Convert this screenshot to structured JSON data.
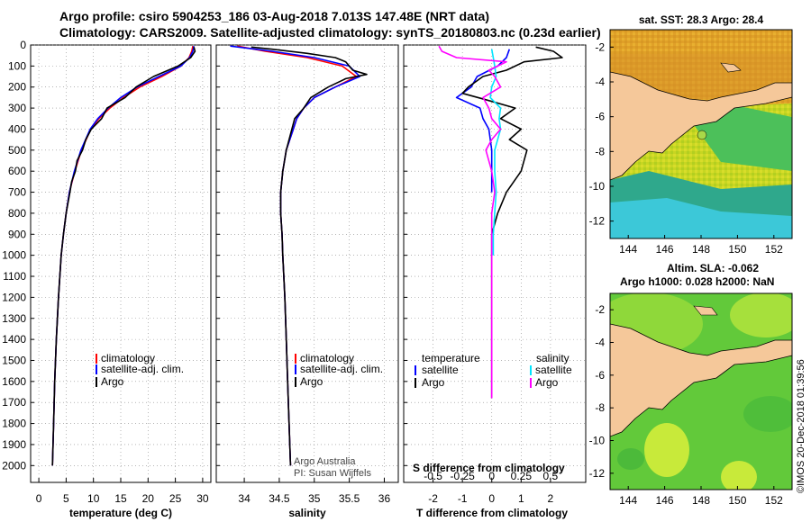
{
  "titles": {
    "line1": "Argo profile: csiro 5904253_186 03-Aug-2018 7.013S 147.48E (NRT data)",
    "line2": "Climatology: CARS2009. Satellite-adjusted climatology: synTS_20180803.nc (0.23d earlier)"
  },
  "depth_axis": {
    "ticks": [
      0,
      100,
      200,
      300,
      400,
      500,
      600,
      700,
      800,
      900,
      1000,
      1100,
      1200,
      1300,
      1400,
      1500,
      1600,
      1700,
      1800,
      1900,
      2000
    ]
  },
  "chart_data": [
    {
      "type": "line",
      "name": "temperature",
      "xlabel": "temperature (deg C)",
      "xlim": [
        -1.5,
        31.5
      ],
      "xticks": [
        0,
        5,
        10,
        15,
        20,
        25,
        30
      ],
      "ylim": [
        0,
        2080
      ],
      "legend": [
        "climatology",
        "satellite-adj. clim.",
        "Argo"
      ],
      "series": [
        {
          "name": "climatology",
          "color": "#ff0000",
          "depth": [
            5,
            30,
            60,
            100,
            150,
            200,
            250,
            300,
            350,
            400,
            500,
            600,
            700,
            800,
            900,
            1000,
            1200,
            1400,
            1600,
            1800,
            2000
          ],
          "values": [
            28.2,
            28.0,
            27.5,
            26.0,
            22.5,
            18.5,
            15.5,
            13.0,
            11.0,
            9.5,
            7.8,
            6.6,
            5.6,
            5.0,
            4.5,
            4.1,
            3.6,
            3.2,
            2.9,
            2.7,
            2.5
          ]
        },
        {
          "name": "satellite-adj. clim.",
          "color": "#0000ff",
          "depth": [
            5,
            30,
            60,
            100,
            150,
            200,
            250,
            300,
            350,
            400,
            500,
            600,
            700,
            800,
            900,
            1000,
            1200,
            1400,
            1600,
            1800,
            2000
          ],
          "values": [
            28.4,
            28.2,
            27.6,
            26.0,
            22.0,
            18.0,
            15.0,
            12.7,
            10.8,
            9.4,
            7.7,
            6.5,
            5.6,
            5.0,
            4.5,
            4.1,
            3.6,
            3.2,
            2.9,
            2.7,
            2.5
          ]
        },
        {
          "name": "Argo",
          "color": "#000000",
          "depth": [
            10,
            30,
            60,
            100,
            150,
            200,
            250,
            300,
            350,
            400,
            450,
            500,
            550,
            600,
            650,
            700,
            800,
            900,
            1000,
            1200,
            1400,
            1600,
            1800,
            2000
          ],
          "values": [
            28.4,
            28.6,
            27.8,
            25.5,
            21.0,
            17.8,
            15.8,
            12.5,
            11.5,
            9.6,
            8.6,
            8.0,
            7.0,
            6.7,
            6.0,
            5.7,
            5.0,
            4.5,
            4.1,
            3.6,
            3.2,
            2.9,
            2.7,
            2.5
          ]
        }
      ]
    },
    {
      "type": "line",
      "name": "salinity",
      "xlabel": "salinity",
      "xlim": [
        33.6,
        36.2
      ],
      "xticks": [
        34,
        34.5,
        35,
        35.5,
        36
      ],
      "ylim": [
        0,
        2080
      ],
      "legend": [
        "climatology",
        "satellite-adj. clim.",
        "Argo"
      ],
      "series": [
        {
          "name": "climatology",
          "color": "#ff0000",
          "depth": [
            5,
            30,
            60,
            100,
            150,
            200,
            250,
            300,
            350,
            400,
            500,
            600,
            700,
            800,
            900,
            1000,
            1200,
            1400,
            1600,
            1800,
            2000
          ],
          "values": [
            33.9,
            34.3,
            34.9,
            35.4,
            35.6,
            35.3,
            35.0,
            34.85,
            34.75,
            34.7,
            34.6,
            34.55,
            34.52,
            34.52,
            34.54,
            34.55,
            34.58,
            34.6,
            34.62,
            34.64,
            34.66
          ]
        },
        {
          "name": "satellite-adj. clim.",
          "color": "#0000ff",
          "depth": [
            5,
            30,
            60,
            100,
            150,
            200,
            250,
            300,
            350,
            400,
            500,
            600,
            700,
            800,
            900,
            1000,
            1200,
            1400,
            1600,
            1800,
            2000
          ],
          "values": [
            33.8,
            34.4,
            35.0,
            35.5,
            35.65,
            35.3,
            35.0,
            34.85,
            34.75,
            34.7,
            34.6,
            34.55,
            34.52,
            34.52,
            34.54,
            34.55,
            34.58,
            34.6,
            34.62,
            34.64,
            34.66
          ]
        },
        {
          "name": "Argo",
          "color": "#000000",
          "depth": [
            10,
            20,
            40,
            60,
            80,
            100,
            120,
            140,
            160,
            200,
            250,
            300,
            350,
            400,
            500,
            600,
            700,
            800,
            900,
            1000,
            1200,
            1400,
            1600,
            1800,
            2000
          ],
          "values": [
            34.1,
            34.4,
            34.9,
            35.3,
            35.45,
            35.5,
            35.55,
            35.75,
            35.45,
            35.2,
            34.95,
            34.85,
            34.72,
            34.68,
            34.6,
            34.55,
            34.52,
            34.52,
            34.54,
            34.55,
            34.58,
            34.6,
            34.62,
            34.64,
            34.66
          ]
        }
      ]
    },
    {
      "type": "line",
      "name": "difference",
      "xlabel": "T difference from climatology",
      "xlabel_top": "S difference from climatology",
      "xlim": [
        -3,
        3.2
      ],
      "xticks": [
        -2,
        -1,
        0,
        1,
        2
      ],
      "xticks_top": [
        "-0.5",
        "-0.25",
        "0",
        "0.25",
        "0.5"
      ],
      "ylim": [
        0,
        2080
      ],
      "legend_left_title": "temperature",
      "legend_right_title": "salinity",
      "legend": [
        "satellite",
        "Argo",
        "satellite",
        "Argo"
      ],
      "series": [
        {
          "name": "T satellite",
          "color": "#0000ff",
          "depth": [
            20,
            60,
            100,
            150,
            200,
            250,
            300,
            350,
            400,
            500,
            600,
            700
          ],
          "values": [
            0.6,
            0.5,
            0.2,
            -0.5,
            -0.7,
            -1.2,
            -0.4,
            -0.3,
            -0.1,
            0.0,
            0.0,
            0.0
          ]
        },
        {
          "name": "T Argo",
          "color": "#000000",
          "depth": [
            10,
            30,
            60,
            80,
            100,
            120,
            150,
            200,
            230,
            260,
            300,
            350,
            400,
            450,
            500,
            600,
            700,
            800,
            900,
            1000,
            1200,
            1400,
            1600,
            1680
          ],
          "values": [
            1.5,
            2.1,
            2.4,
            1.1,
            0.8,
            0.5,
            -0.3,
            -0.8,
            -1.0,
            -0.2,
            0.8,
            0.3,
            1.0,
            0.6,
            1.2,
            1.0,
            0.5,
            0.2,
            0.0,
            0.0,
            0.0,
            0.0,
            0.0,
            0.0
          ]
        },
        {
          "name": "S satellite",
          "color": "#00e5ff",
          "depth": [
            20,
            60,
            100,
            150,
            200,
            250,
            300,
            350,
            400,
            500,
            600,
            700,
            800,
            900,
            1000
          ],
          "values": [
            0.0,
            0.05,
            0.1,
            0.15,
            0.0,
            -0.05,
            0.3,
            0.25,
            0.3,
            0.1,
            0.1,
            0.15,
            0.1,
            0.05,
            0.05
          ]
        },
        {
          "name": "S Argo",
          "color": "#ff00ff",
          "depth": [
            5,
            30,
            60,
            80,
            100,
            120,
            150,
            200,
            250,
            300,
            350,
            400,
            450,
            500,
            600,
            700,
            800,
            900,
            1000,
            1200,
            1400,
            1600,
            1680
          ],
          "values": [
            -1.8,
            -1.7,
            -1.2,
            0.5,
            0.2,
            -0.1,
            0.1,
            0.3,
            -0.3,
            -0.1,
            0.0,
            0.3,
            0.0,
            -0.2,
            0.0,
            0.1,
            0.0,
            0.0,
            0.0,
            0.0,
            0.0,
            0.0,
            0.0
          ]
        }
      ]
    }
  ],
  "annotations": {
    "credit1": "Argo Australia",
    "credit2": "PI: Susan Wijffels"
  },
  "maps": {
    "top": {
      "title": "sat. SST: 28.3 Argo: 28.4"
    },
    "bottom": {
      "title1": "Altim. SLA: -0.062",
      "title2": "Argo h1000: 0.028 h2000: NaN"
    },
    "yticks": [
      "-2",
      "-4",
      "-6",
      "-8",
      "-10",
      "-12"
    ],
    "xticks": [
      "144",
      "146",
      "148",
      "150",
      "152"
    ]
  },
  "watermark": "©IMOS 20-Dec-2018 01:39:56"
}
